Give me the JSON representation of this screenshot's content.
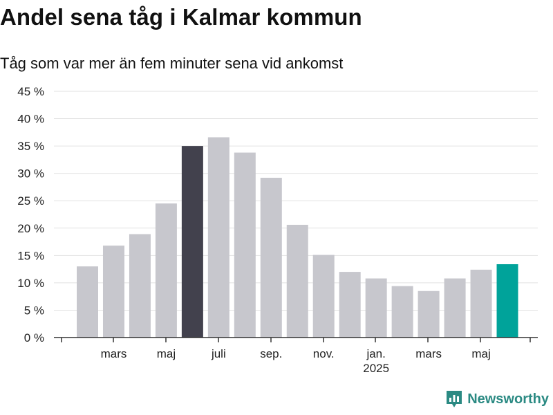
{
  "title": "Andel sena tåg i Kalmar kommun",
  "subtitle": "Tåg som var mer än fem minuter sena vid ankomst",
  "brand": {
    "name": "Newsworthy",
    "icon": "newsworthy-logo-icon",
    "color": "#2b8a83"
  },
  "chart_data": {
    "type": "bar",
    "categories": [
      "2024-02",
      "2024-03",
      "2024-04",
      "2024-05",
      "2024-06",
      "2024-07",
      "2024-08",
      "2024-09",
      "2024-10",
      "2024-11",
      "2024-12",
      "2025-01",
      "2025-02",
      "2025-03",
      "2025-04",
      "2025-05",
      "2025-06"
    ],
    "values": [
      13,
      16.8,
      18.9,
      24.5,
      35,
      36.6,
      33.8,
      29.2,
      20.6,
      15.1,
      12,
      10.8,
      9.4,
      8.5,
      10.8,
      12.4,
      13.4
    ],
    "colors": [
      "#c7c7cd",
      "#c7c7cd",
      "#c7c7cd",
      "#c7c7cd",
      "#42414d",
      "#c7c7cd",
      "#c7c7cd",
      "#c7c7cd",
      "#c7c7cd",
      "#c7c7cd",
      "#c7c7cd",
      "#c7c7cd",
      "#c7c7cd",
      "#c7c7cd",
      "#c7c7cd",
      "#c7c7cd",
      "#00a39a"
    ],
    "ylim": [
      0,
      45
    ],
    "yticks": [
      0,
      5,
      10,
      15,
      20,
      25,
      30,
      35,
      40,
      45
    ],
    "ytick_labels": [
      "0 %",
      "5 %",
      "10 %",
      "15 %",
      "20 %",
      "25 %",
      "30 %",
      "35 %",
      "40 %",
      "45 %"
    ],
    "xtick_labels": [
      {
        "category": "2024-03",
        "label": "mars",
        "sublabel": ""
      },
      {
        "category": "2024-05",
        "label": "maj",
        "sublabel": ""
      },
      {
        "category": "2024-07",
        "label": "juli",
        "sublabel": ""
      },
      {
        "category": "2024-09",
        "label": "sep.",
        "sublabel": ""
      },
      {
        "category": "2024-11",
        "label": "nov.",
        "sublabel": ""
      },
      {
        "category": "2025-01",
        "label": "jan.",
        "sublabel": "2025"
      },
      {
        "category": "2025-03",
        "label": "mars",
        "sublabel": ""
      },
      {
        "category": "2025-05",
        "label": "maj",
        "sublabel": ""
      }
    ],
    "grid": true,
    "grid_color": "#e2e2e2",
    "axis_color": "#333333",
    "xlabel": "",
    "ylabel": ""
  }
}
